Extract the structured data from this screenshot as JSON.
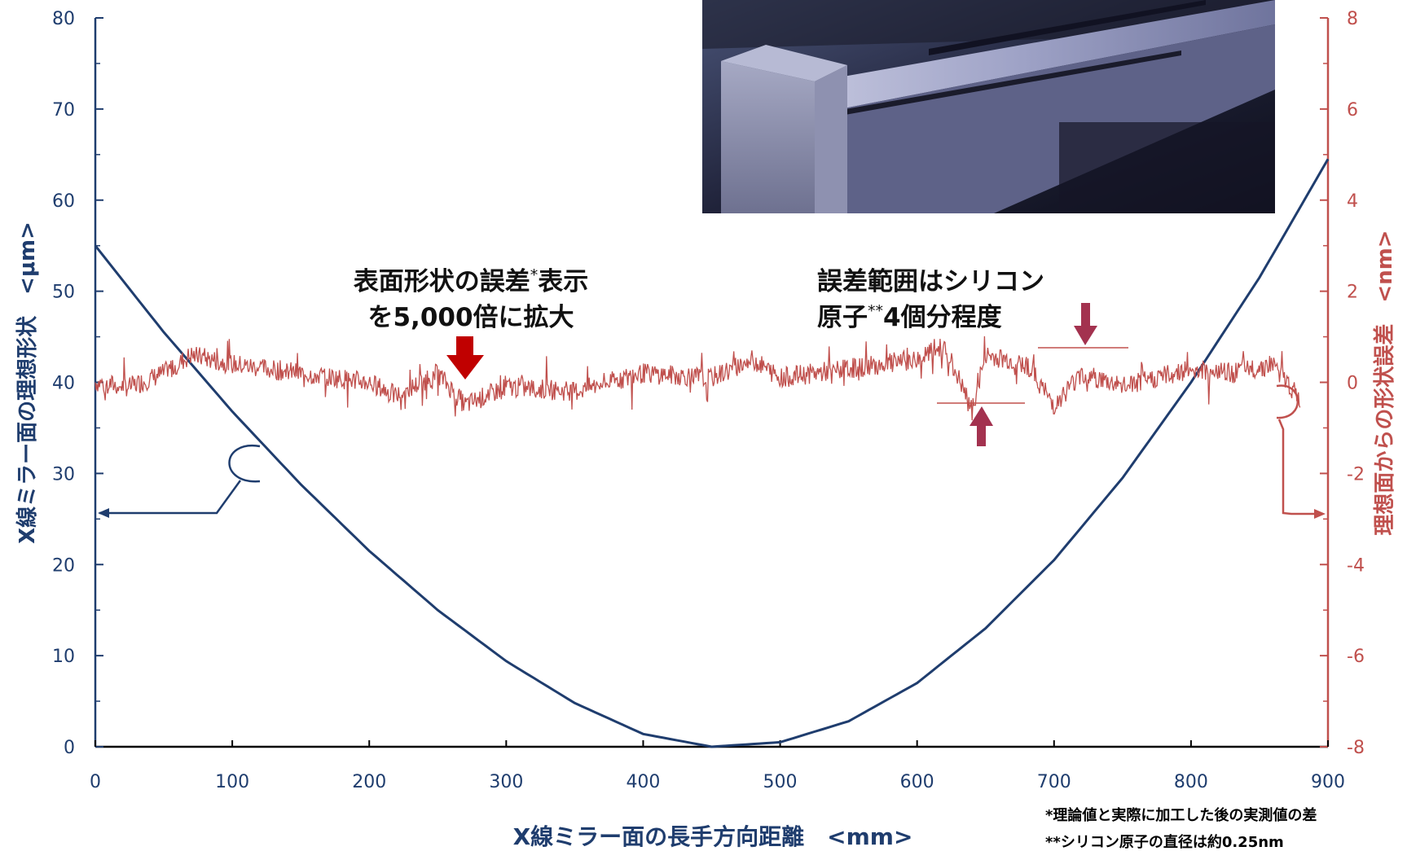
{
  "chart_data": {
    "type": "line",
    "x_axis": {
      "label": "X線ミラー面の長手方向距離　<mm>",
      "range": [
        0,
        900
      ],
      "ticks": [
        0,
        100,
        200,
        300,
        400,
        500,
        600,
        700,
        800,
        900
      ]
    },
    "y_left": {
      "label": "X線ミラー面の理想形状　<μm>",
      "range": [
        0,
        80
      ],
      "ticks": [
        0,
        10,
        20,
        30,
        40,
        50,
        60,
        70,
        80
      ]
    },
    "y_right": {
      "label": "理想面からの形状誤差　<nm>",
      "range": [
        -8,
        8
      ],
      "ticks": [
        -8,
        -6,
        -4,
        -2,
        0,
        2,
        4,
        6,
        8
      ]
    },
    "series": [
      {
        "axis": "left",
        "color": "#1f3d6e",
        "x": [
          0,
          50,
          100,
          150,
          200,
          250,
          300,
          350,
          400,
          450,
          500,
          550,
          600,
          650,
          700,
          750,
          800,
          850,
          900
        ],
        "y": [
          55.0,
          45.5,
          36.8,
          28.8,
          21.5,
          15.0,
          9.4,
          4.8,
          1.4,
          0.0,
          0.5,
          2.8,
          7.0,
          13.0,
          20.5,
          29.5,
          40.0,
          51.5,
          64.5
        ]
      },
      {
        "axis": "right",
        "color": "#c0504d",
        "x": [
          0,
          25,
          50,
          70,
          100,
          150,
          200,
          220,
          250,
          270,
          300,
          350,
          400,
          450,
          480,
          500,
          550,
          600,
          620,
          640,
          650,
          680,
          700,
          720,
          750,
          800,
          830,
          860,
          880
        ],
        "y": [
          0.0,
          -0.1,
          0.2,
          0.6,
          0.4,
          0.2,
          0.0,
          -0.3,
          0.2,
          -0.5,
          -0.1,
          -0.2,
          0.2,
          0.1,
          0.5,
          0.1,
          0.3,
          0.5,
          0.8,
          -0.6,
          0.6,
          0.4,
          -0.5,
          0.2,
          -0.1,
          0.3,
          0.2,
          0.4,
          -0.4
        ]
      }
    ]
  },
  "annotations": {
    "left_callout_line1": "表面形状の誤差",
    "left_callout_sup": "*",
    "left_callout_tail": "表示",
    "left_callout_line2": "を5,000倍に拡大",
    "right_callout_line1": "誤差範囲はシリコン",
    "right_callout_line2_a": "原子",
    "right_callout_sup": "**",
    "right_callout_line2_b": "4個分程度"
  },
  "footnotes": {
    "note1": "*理論値と実際に加工した後の実測値の差",
    "note2": "**シリコン原子の直径は約0.25nm"
  },
  "colors": {
    "ideal_shape": "#1f3d6e",
    "error": "#c0504d",
    "arrow_red": "#c00000",
    "arrow_maroon": "#a3324f"
  }
}
